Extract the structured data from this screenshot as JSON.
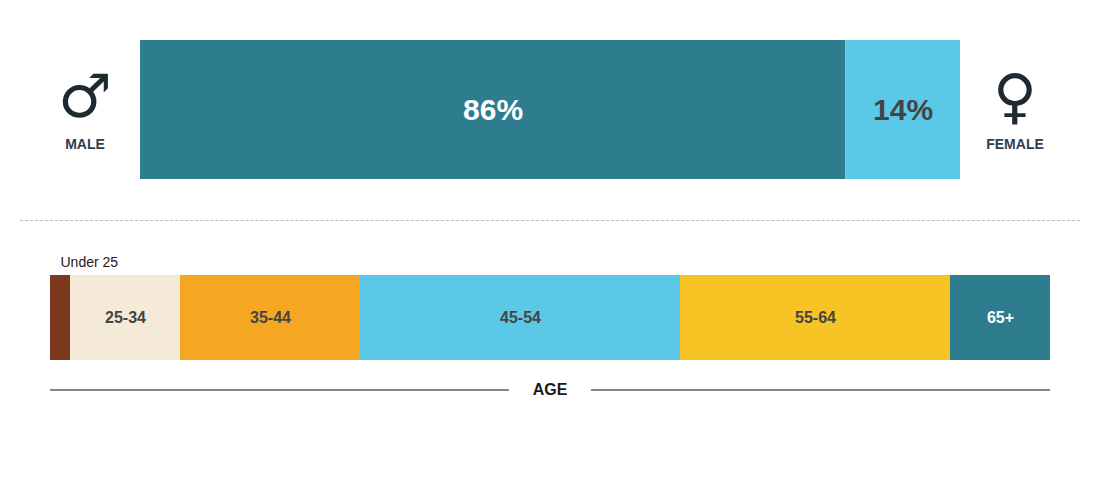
{
  "chart_data": [
    {
      "type": "bar",
      "orientation": "horizontal",
      "stacked": true,
      "categories": [
        null
      ],
      "series": [
        {
          "name": "MALE",
          "color": "#2e7d8e",
          "values": [
            86
          ],
          "value_labels": [
            "86%"
          ]
        },
        {
          "name": "FEMALE",
          "color": "#5cc8e8",
          "values": [
            14
          ],
          "value_labels": [
            "14%"
          ]
        }
      ],
      "annotations": [
        "♂",
        "♀"
      ],
      "xlim": [
        0,
        100
      ],
      "data_labels": true,
      "tick_labels": false
    },
    {
      "type": "bar",
      "orientation": "horizontal",
      "stacked": true,
      "categories": [
        null
      ],
      "xlabel": "AGE",
      "series": [
        {
          "name": "Under 25",
          "color": "#7b3a1e",
          "values": [
            2
          ]
        },
        {
          "name": "25-34",
          "color": "#f5ead8",
          "values": [
            11
          ]
        },
        {
          "name": "35-44",
          "color": "#f5a623",
          "values": [
            18
          ]
        },
        {
          "name": "45-54",
          "color": "#5cc8e8",
          "values": [
            32
          ]
        },
        {
          "name": "55-64",
          "color": "#f7c325",
          "values": [
            27
          ]
        },
        {
          "name": "65+",
          "color": "#2e7d8e",
          "values": [
            10
          ]
        }
      ],
      "xlim": [
        0,
        100
      ],
      "tick_labels": false
    }
  ]
}
